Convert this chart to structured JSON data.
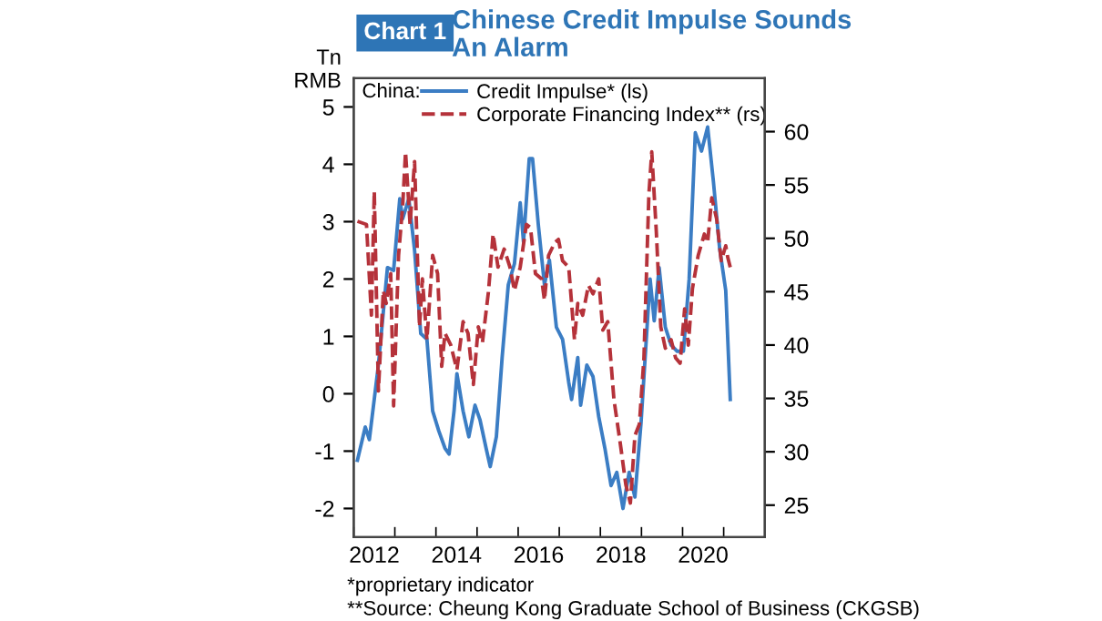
{
  "chart_data": {
    "type": "line",
    "title": "Chinese Credit Impulse Sounds\nAn Alarm",
    "ylabel": "Tn\nRMB",
    "legend_title": "China:",
    "legend": "top",
    "grid": false,
    "annotations": [
      "Chart 1",
      "*proprietary indicator",
      "**Source: Cheung Kong Graduate School of Business (CKGSB)"
    ],
    "xlim": [
      2012,
      2022
    ],
    "xticks": [
      {
        "value": 2012,
        "label": null
      },
      {
        "value": 2013,
        "label": null
      },
      {
        "value": 2014,
        "label": null
      },
      {
        "value": 2015,
        "label": null
      },
      {
        "value": 2016,
        "label": null
      },
      {
        "value": 2017,
        "label": null
      },
      {
        "value": 2018,
        "label": null
      },
      {
        "value": 2019,
        "label": null
      },
      {
        "value": 2020,
        "label": null
      },
      {
        "value": 2021,
        "label": null
      },
      {
        "value": 2012.5,
        "label": "2012"
      },
      {
        "value": 2014.5,
        "label": "2014"
      },
      {
        "value": 2016.5,
        "label": "2016"
      },
      {
        "value": 2018.5,
        "label": "2018"
      },
      {
        "value": 2020.5,
        "label": "2020"
      }
    ],
    "ylim": [
      -2.5,
      5.5
    ],
    "yticks": [
      -2,
      -1,
      0,
      1,
      2,
      3,
      4,
      5
    ],
    "y2lim": [
      22,
      65
    ],
    "y2ticks": [
      25,
      30,
      35,
      40,
      45,
      50,
      55,
      60
    ],
    "series": [
      {
        "name": "Credit Impulse* (ls)",
        "color": "#3b7dc4",
        "line_style": "solid",
        "x": [
          2012.09,
          2012.28,
          2012.38,
          2012.6,
          2012.82,
          2012.97,
          2013.12,
          2013.19,
          2013.34,
          2013.48,
          2013.63,
          2013.78,
          2013.92,
          2014.07,
          2014.22,
          2014.32,
          2014.44,
          2014.51,
          2014.66,
          2014.8,
          2014.95,
          2015.07,
          2015.22,
          2015.32,
          2015.47,
          2015.61,
          2015.76,
          2015.91,
          2016.05,
          2016.13,
          2016.27,
          2016.35,
          2016.49,
          2016.64,
          2016.76,
          2016.93,
          2017.08,
          2017.23,
          2017.3,
          2017.45,
          2017.52,
          2017.67,
          2017.82,
          2017.96,
          2018.11,
          2018.26,
          2018.4,
          2018.55,
          2018.7,
          2018.84,
          2018.99,
          2019.06,
          2019.21,
          2019.31,
          2019.43,
          2019.58,
          2019.72,
          2019.87,
          2020.02,
          2020.16,
          2020.31,
          2020.46,
          2020.61,
          2020.75,
          2020.9,
          2021.05,
          2021.16
        ],
        "values": [
          -1.16,
          -0.58,
          -0.8,
          0.5,
          2.2,
          2.15,
          3.4,
          3.05,
          3.4,
          2.5,
          1.05,
          0.95,
          -0.3,
          -0.65,
          -0.95,
          -1.05,
          -0.3,
          0.35,
          -0.3,
          -0.75,
          -0.2,
          -0.45,
          -0.95,
          -1.27,
          -0.75,
          0.63,
          1.9,
          2.27,
          3.33,
          2.65,
          4.1,
          4.1,
          2.95,
          1.9,
          2.33,
          1.16,
          0.95,
          0.2,
          -0.1,
          0.63,
          -0.2,
          0.5,
          0.3,
          -0.4,
          -0.95,
          -1.6,
          -1.37,
          -2.0,
          -1.37,
          -1.8,
          -0.5,
          0.3,
          2.0,
          1.27,
          2.2,
          1.16,
          0.85,
          0.74,
          0.74,
          2.0,
          4.55,
          4.23,
          4.65,
          3.7,
          2.54,
          1.8,
          -0.1
        ]
      },
      {
        "name": "Corporate Financing Index** (rs)",
        "color": "#b5323a",
        "line_style": "dashed",
        "axis": "y2",
        "x": [
          2012.09,
          2012.31,
          2012.43,
          2012.5,
          2012.6,
          2012.72,
          2012.79,
          2012.9,
          2012.97,
          2013.09,
          2013.19,
          2013.26,
          2013.37,
          2013.48,
          2013.6,
          2013.67,
          2013.78,
          2013.92,
          2014.04,
          2014.14,
          2014.22,
          2014.36,
          2014.51,
          2014.66,
          2014.78,
          2014.91,
          2015.03,
          2015.13,
          2015.28,
          2015.39,
          2015.51,
          2015.66,
          2015.8,
          2015.91,
          2016.05,
          2016.2,
          2016.3,
          2016.42,
          2016.57,
          2016.64,
          2016.74,
          2016.89,
          2016.98,
          2017.08,
          2017.23,
          2017.37,
          2017.45,
          2017.57,
          2017.71,
          2017.82,
          2017.96,
          2018.06,
          2018.18,
          2018.33,
          2018.48,
          2018.62,
          2018.73,
          2018.84,
          2018.95,
          2019.06,
          2019.18,
          2019.25,
          2019.36,
          2019.47,
          2019.58,
          2019.72,
          2019.83,
          2019.94,
          2020.05,
          2020.14,
          2020.24,
          2020.38,
          2020.53,
          2020.61,
          2020.71,
          2020.83,
          2020.94,
          2021.05,
          2021.1,
          2021.16
        ],
        "values": [
          51.6,
          51.3,
          42.8,
          54.4,
          35.7,
          45.1,
          43.9,
          46.7,
          34.3,
          48.4,
          53.0,
          58.1,
          51.3,
          57.2,
          41.7,
          46.2,
          40.5,
          48.4,
          46.7,
          38.0,
          41.1,
          40.0,
          37.7,
          42.2,
          41.1,
          36.3,
          41.7,
          40.2,
          45.1,
          50.4,
          47.3,
          49.0,
          47.3,
          45.1,
          47.3,
          51.3,
          51.0,
          46.7,
          46.2,
          44.2,
          48.4,
          49.6,
          49.9,
          47.9,
          47.3,
          40.5,
          43.9,
          42.8,
          45.6,
          44.8,
          46.2,
          41.4,
          42.2,
          34.9,
          30.9,
          26.9,
          25.2,
          31.5,
          32.6,
          38.8,
          54.1,
          58.1,
          50.7,
          41.7,
          39.7,
          40.5,
          38.8,
          38.3,
          43.4,
          40.0,
          45.3,
          48.4,
          50.4,
          49.6,
          53.8,
          51.8,
          47.9,
          49.3,
          48.2,
          47.3
        ]
      }
    ]
  }
}
